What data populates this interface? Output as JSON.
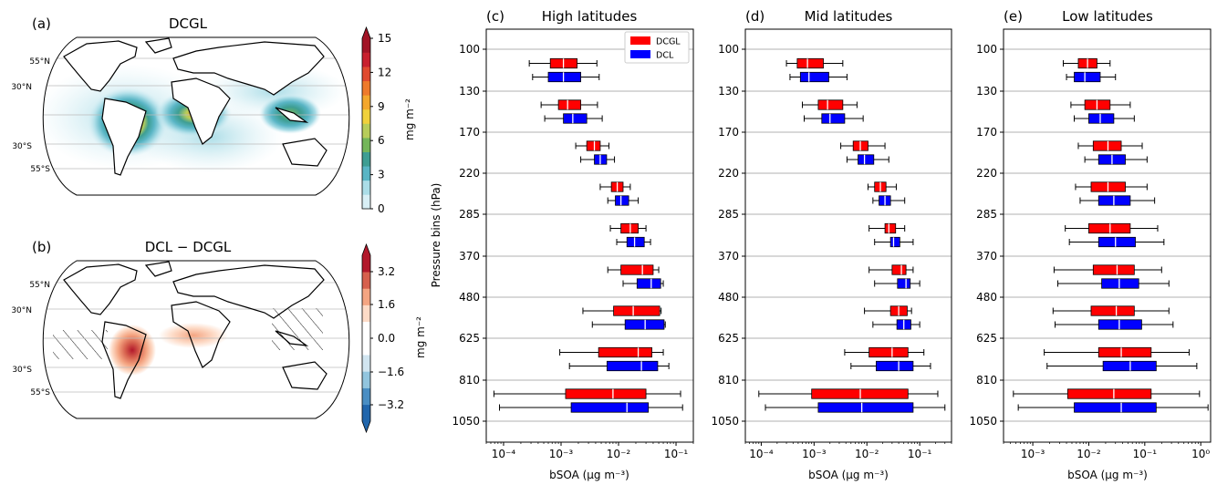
{
  "panels": {
    "a": {
      "label": "(a)",
      "title": "DCGL"
    },
    "b": {
      "label": "(b)",
      "title": "DCL − DCGL"
    },
    "c": {
      "label": "(c)",
      "title": "High latitudes"
    },
    "d": {
      "label": "(d)",
      "title": "Mid latitudes"
    },
    "e": {
      "label": "(e)",
      "title": "Low latitudes"
    }
  },
  "map_lat_labels": [
    "55°N",
    "30°N",
    "30°S",
    "55°S"
  ],
  "colorbar_a": {
    "unit": "mg m⁻²",
    "ticks": [
      "15",
      "12",
      "9",
      "6",
      "3",
      "0"
    ],
    "colors": [
      "#d8eff5",
      "#abdde7",
      "#59b5c5",
      "#3e9e93",
      "#74b65a",
      "#b7cd5b",
      "#f0d13c",
      "#f3a72d",
      "#ee7a2b",
      "#e04a2f",
      "#c8202e",
      "#a21426"
    ]
  },
  "colorbar_b": {
    "unit": "mg m⁻²",
    "ticks": [
      "3.2",
      "1.6",
      "0.0",
      "−1.6",
      "−3.2"
    ],
    "colors": [
      "#2166ac",
      "#4a8ec3",
      "#92c5de",
      "#d1e5f0",
      "#ffffff",
      "#ffffff",
      "#fddbc7",
      "#f4a582",
      "#d6604d",
      "#b2182b"
    ]
  },
  "chart_data": [
    {
      "type": "box",
      "panel": "c",
      "title": "High latitudes",
      "xlabel": "bSOA (μg m⁻³)",
      "ylabel": "Pressure bins (hPa)",
      "xscale": "log",
      "xlim": [
        5e-05,
        0.2
      ],
      "xticks": [
        "10⁻⁴",
        "10⁻³",
        "10⁻²",
        "10⁻¹"
      ],
      "legend_position": "top-right",
      "categories": [
        "100",
        "130",
        "170",
        "220",
        "285",
        "370",
        "480",
        "625",
        "810",
        "1050"
      ],
      "series": [
        {
          "name": "DCGL",
          "color": "#ff0000",
          "boxes": [
            [
              0.00028,
              0.00065,
              0.0011,
              0.0019,
              0.0042
            ],
            [
              0.00045,
              0.0009,
              0.0013,
              0.0022,
              0.0043
            ],
            [
              0.0018,
              0.0028,
              0.0038,
              0.0048,
              0.0068
            ],
            [
              0.0048,
              0.0075,
              0.0095,
              0.012,
              0.016
            ],
            [
              0.0072,
              0.011,
              0.016,
              0.022,
              0.03
            ],
            [
              0.0065,
              0.011,
              0.026,
              0.04,
              0.05
            ],
            [
              0.0024,
              0.0082,
              0.018,
              0.052,
              0.055
            ],
            [
              0.00095,
              0.0045,
              0.022,
              0.038,
              0.06
            ],
            [
              6.8e-05,
              0.0012,
              0.008,
              0.03,
              0.12
            ]
          ]
        },
        {
          "name": "DCL",
          "color": "#0000ff",
          "boxes": [
            [
              0.00032,
              0.0006,
              0.0011,
              0.0022,
              0.0046
            ],
            [
              0.00052,
              0.0011,
              0.0016,
              0.0028,
              0.0052
            ],
            [
              0.0022,
              0.0038,
              0.0048,
              0.0062,
              0.0085
            ],
            [
              0.0065,
              0.0088,
              0.011,
              0.015,
              0.022
            ],
            [
              0.0093,
              0.014,
              0.019,
              0.028,
              0.036
            ],
            [
              0.012,
              0.021,
              0.037,
              0.054,
              0.06
            ],
            [
              0.0035,
              0.013,
              0.029,
              0.062,
              0.065
            ],
            [
              0.0014,
              0.0063,
              0.025,
              0.048,
              0.075
            ],
            [
              8.5e-05,
              0.0015,
              0.014,
              0.033,
              0.13
            ]
          ]
        }
      ]
    },
    {
      "type": "box",
      "panel": "d",
      "title": "Mid latitudes",
      "xlabel": "bSOA (μg m⁻³)",
      "xscale": "log",
      "xlim": [
        5e-05,
        0.4
      ],
      "xticks": [
        "10⁻⁴",
        "10⁻³",
        "10⁻²",
        "10⁻¹"
      ],
      "categories": [
        "100",
        "130",
        "170",
        "220",
        "285",
        "370",
        "480",
        "625",
        "810",
        "1050"
      ],
      "series": [
        {
          "name": "DCGL",
          "color": "#ff0000",
          "boxes": [
            [
              0.0003,
              0.00048,
              0.00075,
              0.0015,
              0.0035
            ],
            [
              0.0006,
              0.0012,
              0.0018,
              0.0035,
              0.0065
            ],
            [
              0.0032,
              0.0055,
              0.0075,
              0.0105,
              0.022
            ],
            [
              0.0105,
              0.014,
              0.018,
              0.023,
              0.036
            ],
            [
              0.011,
              0.022,
              0.026,
              0.035,
              0.052
            ],
            [
              0.011,
              0.03,
              0.045,
              0.055,
              0.075
            ],
            [
              0.009,
              0.028,
              0.04,
              0.058,
              0.07
            ],
            [
              0.0038,
              0.011,
              0.03,
              0.06,
              0.12
            ],
            [
              9e-05,
              0.0009,
              0.0075,
              0.06,
              0.22
            ]
          ]
        },
        {
          "name": "DCL",
          "color": "#0000ff",
          "boxes": [
            [
              0.00035,
              0.00055,
              0.0008,
              0.0019,
              0.0042
            ],
            [
              0.00065,
              0.0014,
              0.002,
              0.0038,
              0.0085
            ],
            [
              0.0042,
              0.0068,
              0.009,
              0.0135,
              0.026
            ],
            [
              0.013,
              0.017,
              0.022,
              0.028,
              0.052
            ],
            [
              0.014,
              0.028,
              0.032,
              0.042,
              0.075
            ],
            [
              0.014,
              0.038,
              0.055,
              0.066,
              0.1
            ],
            [
              0.013,
              0.037,
              0.05,
              0.068,
              0.1
            ],
            [
              0.005,
              0.015,
              0.04,
              0.075,
              0.16
            ],
            [
              0.00012,
              0.0012,
              0.008,
              0.075,
              0.3
            ]
          ]
        }
      ]
    },
    {
      "type": "box",
      "panel": "e",
      "title": "Low latitudes",
      "xlabel": "bSOA (μg m⁻³)",
      "xscale": "log",
      "xlim": [
        0.0003,
        1.5
      ],
      "xticks": [
        "10⁻³",
        "10⁻²",
        "10⁻¹",
        "10⁰"
      ],
      "categories": [
        "100",
        "130",
        "170",
        "220",
        "285",
        "370",
        "480",
        "625",
        "810",
        "1050"
      ],
      "series": [
        {
          "name": "DCGL",
          "color": "#ff0000",
          "boxes": [
            [
              0.0035,
              0.0065,
              0.0095,
              0.014,
              0.024
            ],
            [
              0.0048,
              0.0085,
              0.014,
              0.024,
              0.055
            ],
            [
              0.0065,
              0.012,
              0.022,
              0.038,
              0.09
            ],
            [
              0.0058,
              0.011,
              0.022,
              0.045,
              0.11
            ],
            [
              0.0038,
              0.01,
              0.024,
              0.055,
              0.17
            ],
            [
              0.0024,
              0.012,
              0.032,
              0.065,
              0.2
            ],
            [
              0.0023,
              0.011,
              0.031,
              0.065,
              0.27
            ],
            [
              0.0016,
              0.015,
              0.038,
              0.13,
              0.62
            ],
            [
              0.00045,
              0.0042,
              0.028,
              0.13,
              0.95
            ]
          ]
        },
        {
          "name": "DCL",
          "color": "#0000ff",
          "boxes": [
            [
              0.004,
              0.0055,
              0.0085,
              0.016,
              0.03
            ],
            [
              0.0055,
              0.01,
              0.016,
              0.028,
              0.065
            ],
            [
              0.0085,
              0.015,
              0.026,
              0.045,
              0.11
            ],
            [
              0.007,
              0.015,
              0.028,
              0.055,
              0.15
            ],
            [
              0.0045,
              0.015,
              0.03,
              0.068,
              0.22
            ],
            [
              0.0028,
              0.017,
              0.035,
              0.078,
              0.27
            ],
            [
              0.0025,
              0.015,
              0.035,
              0.088,
              0.32
            ],
            [
              0.0018,
              0.018,
              0.055,
              0.16,
              0.85
            ],
            [
              0.00055,
              0.0055,
              0.038,
              0.16,
              1.35
            ]
          ]
        }
      ]
    }
  ]
}
